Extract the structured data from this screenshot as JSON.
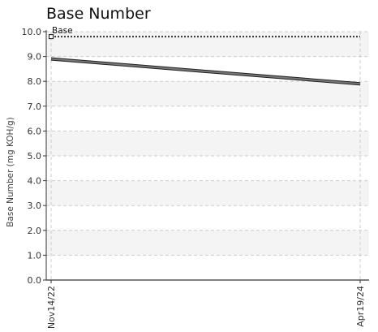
{
  "chart_data": {
    "type": "line",
    "title": "Base Number",
    "xlabel": "",
    "ylabel": "Base Number (mg KOH/g)",
    "ylim": [
      0,
      10
    ],
    "yticks": [
      "0.0",
      "1.0",
      "2.0",
      "3.0",
      "4.0",
      "5.0",
      "6.0",
      "7.0",
      "8.0",
      "9.0",
      "10.0"
    ],
    "x": [
      "Nov14/22",
      "Apr19/24"
    ],
    "grid": true,
    "series": [
      {
        "name": "",
        "style": "solid",
        "color": "#555555",
        "values": [
          8.9,
          7.9
        ]
      },
      {
        "name": "Base",
        "style": "dotted",
        "color": "#333333",
        "values": [
          9.8,
          9.8
        ]
      }
    ]
  }
}
